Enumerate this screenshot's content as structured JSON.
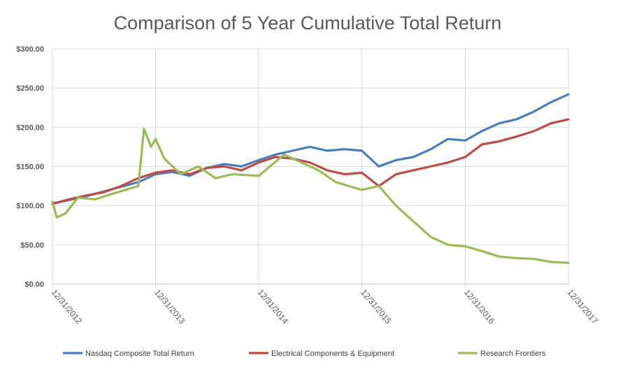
{
  "chart_data": {
    "type": "line",
    "title": "Comparison of 5 Year Cumulative Total Return",
    "xlabel": "",
    "ylabel": "",
    "ylim": [
      0,
      300
    ],
    "yticks": [
      0,
      50,
      100,
      150,
      200,
      250,
      300
    ],
    "ytick_labels": [
      "$0.00",
      "$50.00",
      "$100.00",
      "$150.00",
      "$200.00",
      "$250.00",
      "$300.00"
    ],
    "xlim": [
      "12/31/2012",
      "12/31/2017"
    ],
    "xtick_labels": [
      "12/31/2012",
      "12/31/2013",
      "12/31/2014",
      "12/31/2015",
      "12/31/2016",
      "12/31/2017"
    ],
    "grid": true,
    "legend_position": "bottom",
    "series": [
      {
        "name": "Nasdaq Composite Total Return",
        "color": "#4a7ebb",
        "x": [
          "12/31/2012",
          "2/28/2013",
          "4/30/2013",
          "6/30/2013",
          "8/31/2013",
          "10/31/2013",
          "12/31/2013",
          "2/28/2014",
          "4/30/2014",
          "6/30/2014",
          "8/31/2014",
          "10/31/2014",
          "12/31/2014",
          "2/28/2015",
          "4/30/2015",
          "6/30/2015",
          "8/31/2015",
          "10/31/2015",
          "12/31/2015",
          "2/29/2016",
          "4/30/2016",
          "6/30/2016",
          "8/31/2016",
          "10/31/2016",
          "12/31/2016",
          "2/28/2017",
          "4/30/2017",
          "6/30/2017",
          "8/31/2017",
          "10/31/2017",
          "12/31/2017"
        ],
        "values": [
          103,
          107,
          112,
          118,
          124,
          130,
          140,
          143,
          138,
          148,
          153,
          150,
          158,
          165,
          170,
          175,
          170,
          172,
          170,
          150,
          158,
          162,
          172,
          185,
          183,
          195,
          205,
          210,
          220,
          232,
          242
        ]
      },
      {
        "name": "Electrical Components & Equipment",
        "color": "#be4b48",
        "x": [
          "12/31/2012",
          "2/28/2013",
          "4/30/2013",
          "6/30/2013",
          "8/31/2013",
          "10/31/2013",
          "12/31/2013",
          "2/28/2014",
          "4/30/2014",
          "6/30/2014",
          "8/31/2014",
          "10/31/2014",
          "12/31/2014",
          "2/28/2015",
          "4/30/2015",
          "6/30/2015",
          "8/31/2015",
          "10/31/2015",
          "12/31/2015",
          "2/29/2016",
          "4/30/2016",
          "6/30/2016",
          "8/31/2016",
          "10/31/2016",
          "12/31/2016",
          "2/28/2017",
          "4/30/2017",
          "6/30/2017",
          "8/31/2017",
          "10/31/2017",
          "12/31/2017"
        ],
        "values": [
          102,
          108,
          113,
          117,
          125,
          135,
          142,
          145,
          140,
          148,
          150,
          145,
          155,
          162,
          160,
          155,
          145,
          140,
          142,
          125,
          140,
          145,
          150,
          155,
          162,
          178,
          182,
          188,
          195,
          205,
          210
        ]
      },
      {
        "name": "Research Frontiers",
        "color": "#9bbb59",
        "x": [
          "12/31/2012",
          "1/15/2013",
          "2/15/2013",
          "3/31/2013",
          "5/31/2013",
          "7/31/2013",
          "10/31/2013",
          "11/20/2013",
          "12/15/2013",
          "12/31/2013",
          "1/31/2014",
          "3/31/2014",
          "5/31/2014",
          "7/31/2014",
          "9/30/2014",
          "12/31/2014",
          "3/31/2015",
          "5/31/2015",
          "7/31/2015",
          "9/30/2015",
          "12/31/2015",
          "2/29/2016",
          "4/30/2016",
          "6/30/2016",
          "8/31/2016",
          "10/31/2016",
          "12/31/2016",
          "2/28/2017",
          "4/30/2017",
          "6/30/2017",
          "8/31/2017",
          "10/31/2017",
          "12/31/2017"
        ],
        "values": [
          105,
          85,
          90,
          110,
          108,
          115,
          125,
          198,
          175,
          185,
          160,
          140,
          150,
          135,
          140,
          138,
          165,
          155,
          145,
          130,
          120,
          125,
          100,
          80,
          60,
          50,
          48,
          42,
          35,
          33,
          32,
          28,
          27
        ]
      }
    ]
  }
}
